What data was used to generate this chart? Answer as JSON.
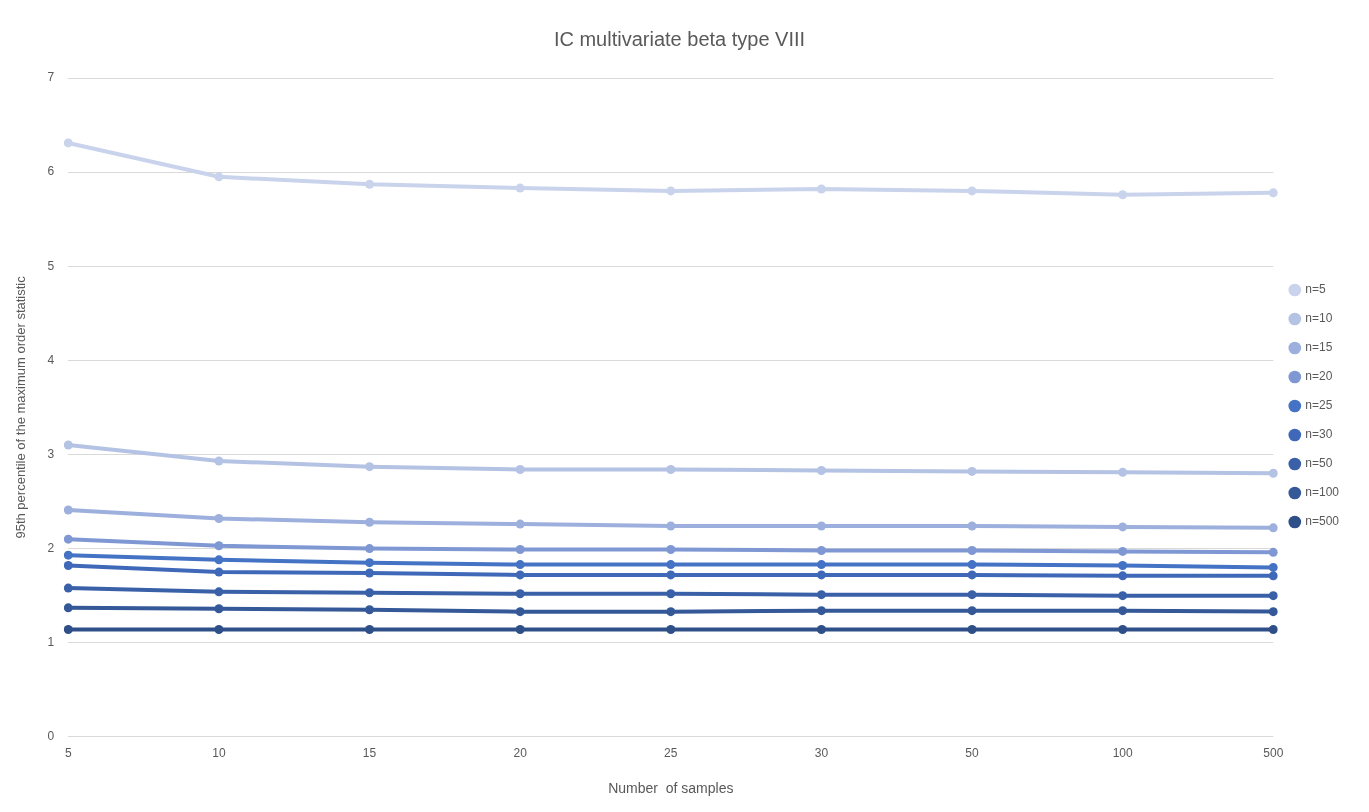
{
  "chart_data": {
    "type": "line",
    "title": "IC multivariate beta type VIII",
    "xlabel": "Number  of samples",
    "ylabel": "95th percentile of the maximum order statistic",
    "categories": [
      "5",
      "10",
      "15",
      "20",
      "25",
      "30",
      "50",
      "100",
      "500"
    ],
    "series": [
      {
        "name": "n=5",
        "color": "#c9d3ec",
        "values": [
          6.31,
          5.95,
          5.87,
          5.83,
          5.8,
          5.82,
          5.8,
          5.76,
          5.78
        ]
      },
      {
        "name": "n=10",
        "color": "#b4c2e4",
        "values": [
          3.1,
          2.93,
          2.87,
          2.84,
          2.84,
          2.83,
          2.82,
          2.81,
          2.8
        ]
      },
      {
        "name": "n=15",
        "color": "#9dafdc",
        "values": [
          2.41,
          2.32,
          2.28,
          2.26,
          2.24,
          2.24,
          2.24,
          2.23,
          2.22
        ]
      },
      {
        "name": "n=20",
        "color": "#7f98d4",
        "values": [
          2.1,
          2.03,
          2.0,
          1.99,
          1.99,
          1.98,
          1.98,
          1.97,
          1.96
        ]
      },
      {
        "name": "n=25",
        "color": "#4472c4",
        "values": [
          1.93,
          1.88,
          1.85,
          1.83,
          1.83,
          1.83,
          1.83,
          1.82,
          1.8
        ]
      },
      {
        "name": "n=30",
        "color": "#3f69b8",
        "values": [
          1.82,
          1.75,
          1.74,
          1.72,
          1.72,
          1.72,
          1.72,
          1.71,
          1.71
        ]
      },
      {
        "name": "n=50",
        "color": "#3a61a8",
        "values": [
          1.58,
          1.54,
          1.53,
          1.52,
          1.52,
          1.51,
          1.51,
          1.5,
          1.5
        ]
      },
      {
        "name": "n=100",
        "color": "#355998",
        "values": [
          1.37,
          1.36,
          1.35,
          1.33,
          1.33,
          1.34,
          1.34,
          1.34,
          1.33
        ]
      },
      {
        "name": "n=500",
        "color": "#2f4f88",
        "values": [
          1.14,
          1.14,
          1.14,
          1.14,
          1.14,
          1.14,
          1.14,
          1.14,
          1.14
        ]
      }
    ],
    "ylim": [
      0,
      7
    ],
    "yticks": [
      0,
      1,
      2,
      3,
      4,
      5,
      6,
      7
    ],
    "grid": "y",
    "legend": "right",
    "marker": "circle",
    "line_style": "solid"
  }
}
